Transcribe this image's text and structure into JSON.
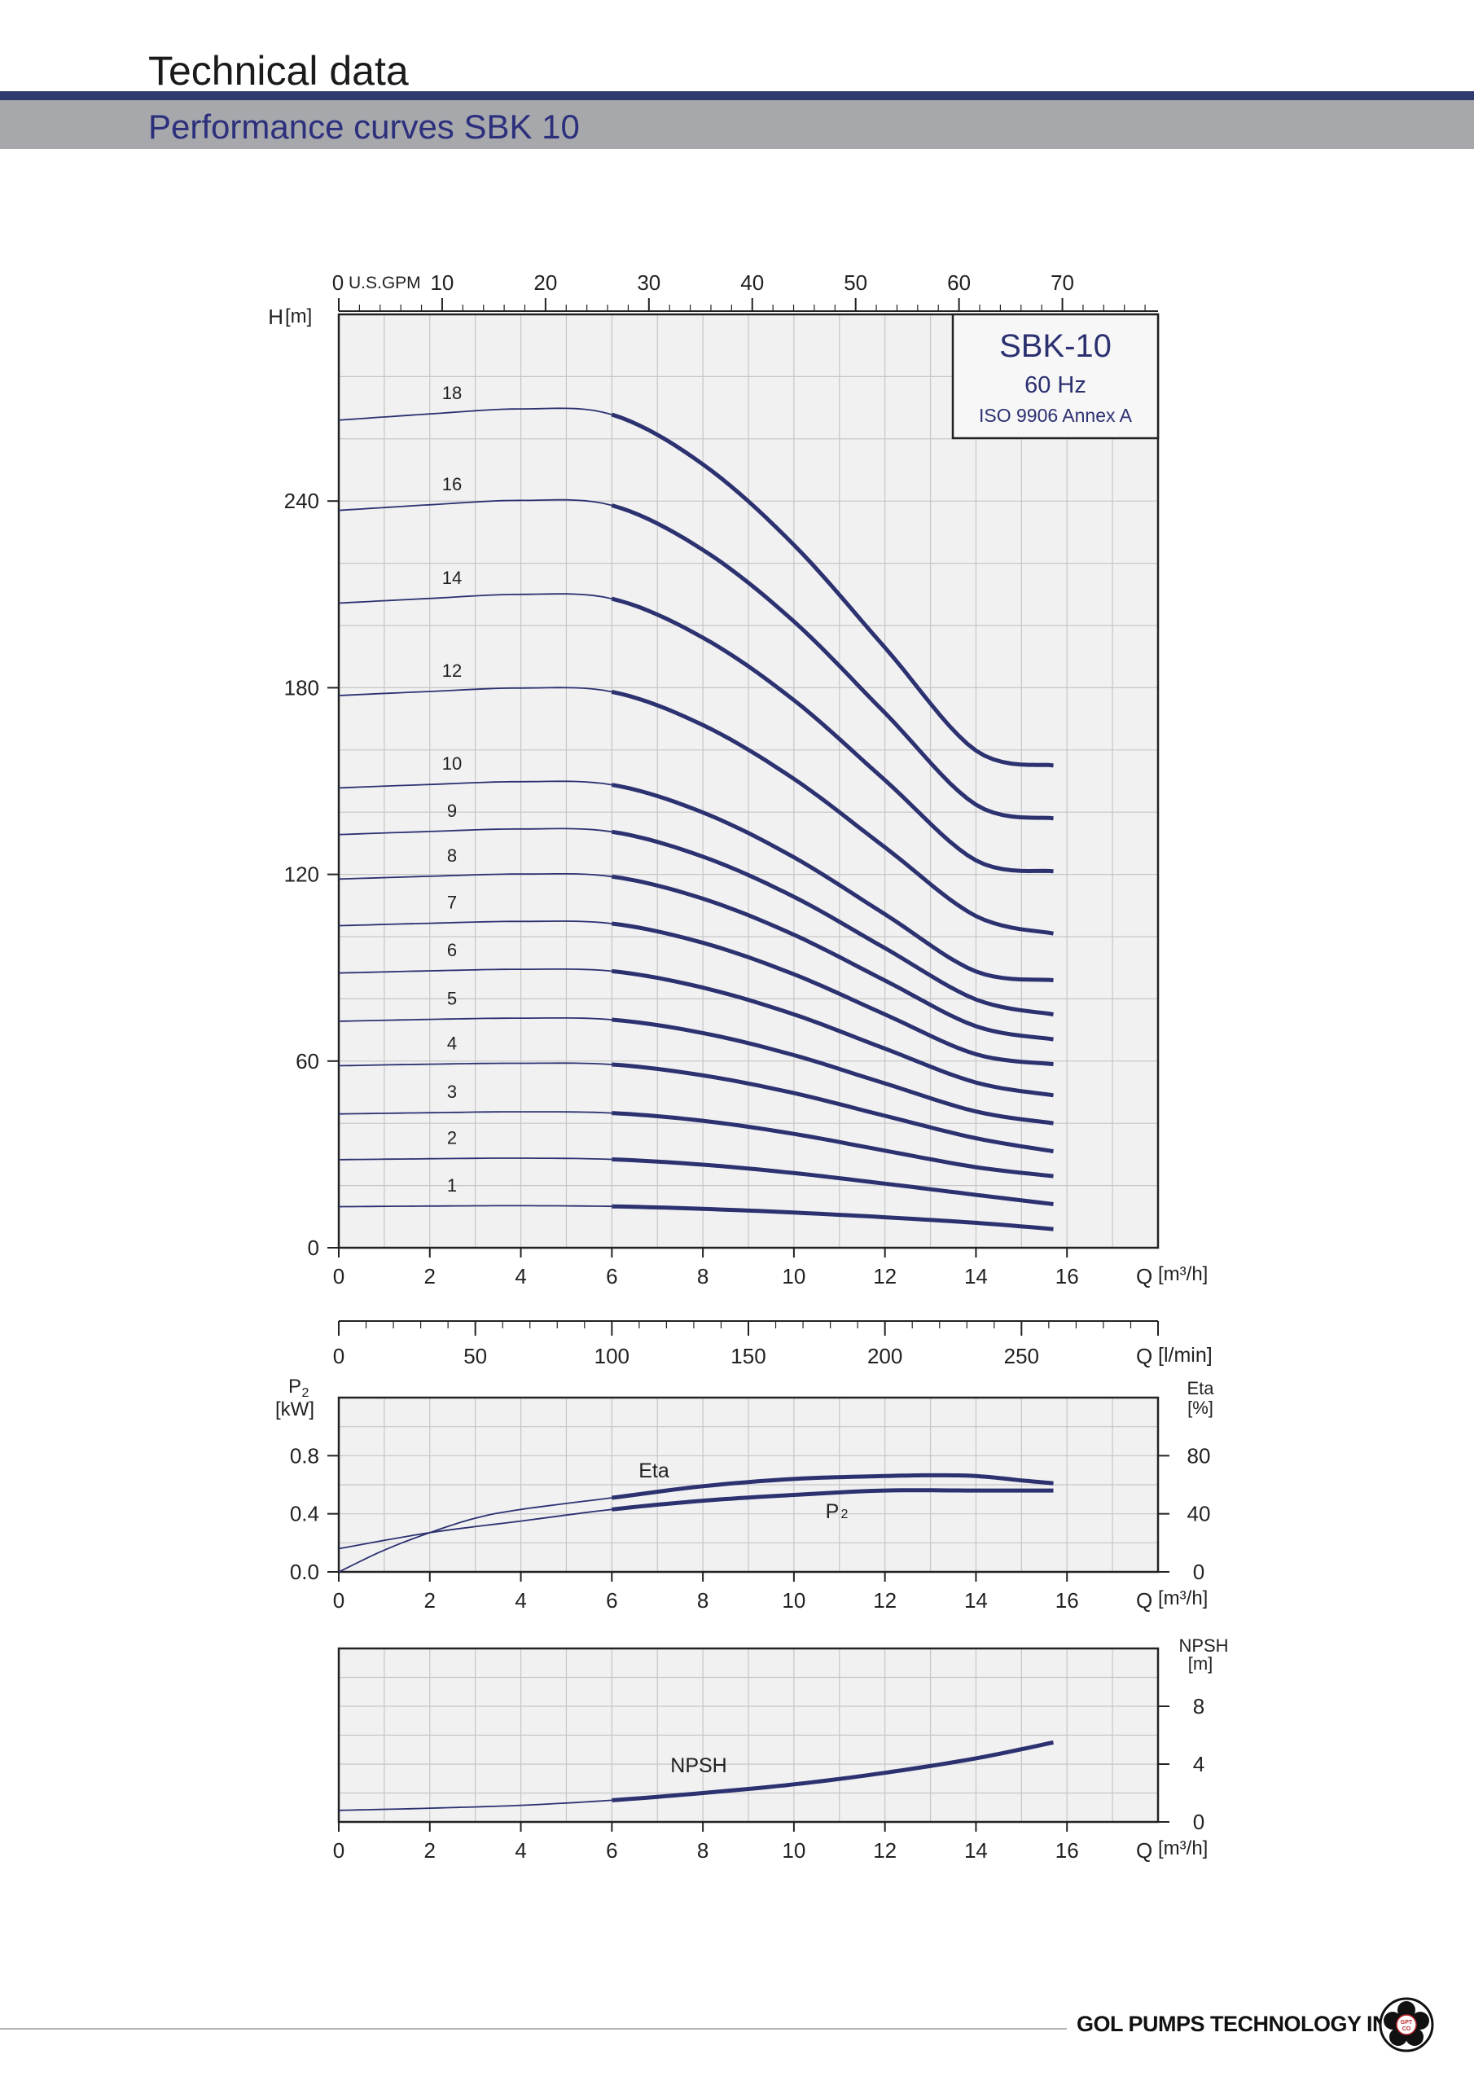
{
  "header": {
    "title": "Technical data",
    "subtitle": "Performance curves SBK 10"
  },
  "footer": {
    "company": "GOL PUMPS TECHNOLOGY INC",
    "logo_text": "GPT CO"
  },
  "colors": {
    "curve": "#2c3170",
    "grid": "#c6c6c6",
    "plot_bg": "#f1f1f2",
    "axis": "#222222",
    "band": "#a6a8ac",
    "rule": "#2f3a6e"
  },
  "chart_data": [
    {
      "type": "line",
      "title": "SBK-10",
      "legend": {
        "model": "SBK-10",
        "frequency": "60 Hz",
        "standard": "ISO 9906 Annex A",
        "placement": "top-right"
      },
      "xlabel": "Q[m³/h]",
      "ylabel": "H[m]",
      "xlim": [
        0,
        18
      ],
      "ylim": [
        0,
        300
      ],
      "x_ticks": [
        "0",
        "2",
        "4",
        "6",
        "8",
        "10",
        "12",
        "14",
        "16"
      ],
      "y_ticks": [
        "0",
        "60",
        "120",
        "180",
        "240"
      ],
      "secondary_x_axis": {
        "label": "U.S.GPM",
        "ticks": [
          "0",
          "10",
          "20",
          "30",
          "40",
          "50",
          "60",
          "70"
        ]
      },
      "grid": true,
      "operating_range": [
        6,
        15.7
      ],
      "series": [
        {
          "name": "1",
          "x": [
            0,
            2,
            4,
            6,
            8,
            10,
            12,
            14,
            15.7
          ],
          "y": [
            13.2,
            13.4,
            13.5,
            13.3,
            12.5,
            11.3,
            9.8,
            8.0,
            6.0
          ]
        },
        {
          "name": "2",
          "x": [
            0,
            2,
            4,
            6,
            8,
            10,
            12,
            14,
            15.7
          ],
          "y": [
            28.3,
            28.6,
            28.8,
            28.4,
            26.7,
            24.0,
            20.6,
            17.0,
            14.0
          ]
        },
        {
          "name": "3",
          "x": [
            0,
            2,
            4,
            6,
            8,
            10,
            12,
            14,
            15.7
          ],
          "y": [
            43.0,
            43.4,
            43.7,
            43.3,
            40.8,
            36.6,
            31.2,
            25.9,
            23.0
          ]
        },
        {
          "name": "4",
          "x": [
            0,
            2,
            4,
            6,
            8,
            10,
            12,
            14,
            15.7
          ],
          "y": [
            58.5,
            59.0,
            59.3,
            58.9,
            55.4,
            49.7,
            42.4,
            35.2,
            31.0
          ]
        },
        {
          "name": "5",
          "x": [
            0,
            2,
            4,
            6,
            8,
            10,
            12,
            14,
            15.7
          ],
          "y": [
            72.8,
            73.4,
            73.8,
            73.3,
            69.0,
            61.9,
            52.8,
            43.8,
            40.0
          ]
        },
        {
          "name": "6",
          "x": [
            0,
            2,
            4,
            6,
            8,
            10,
            12,
            14,
            15.7
          ],
          "y": [
            88.3,
            89.0,
            89.5,
            88.9,
            83.6,
            75.0,
            64.0,
            53.1,
            49.0
          ]
        },
        {
          "name": "7",
          "x": [
            0,
            2,
            4,
            6,
            8,
            10,
            12,
            14,
            15.7
          ],
          "y": [
            103.5,
            104.3,
            104.9,
            104.2,
            98.0,
            87.9,
            75.0,
            62.2,
            59.0
          ]
        },
        {
          "name": "8",
          "x": [
            0,
            2,
            4,
            6,
            8,
            10,
            12,
            14,
            15.7
          ],
          "y": [
            118.5,
            119.4,
            120.1,
            119.3,
            112.2,
            100.6,
            85.9,
            71.2,
            67.0
          ]
        },
        {
          "name": "9",
          "x": [
            0,
            2,
            4,
            6,
            8,
            10,
            12,
            14,
            15.7
          ],
          "y": [
            132.8,
            133.8,
            134.6,
            133.7,
            125.7,
            112.8,
            96.3,
            79.8,
            75.0
          ]
        },
        {
          "name": "10",
          "x": [
            0,
            2,
            4,
            6,
            8,
            10,
            12,
            14,
            15.7
          ],
          "y": [
            147.8,
            148.9,
            149.8,
            148.8,
            139.9,
            125.5,
            107.2,
            88.8,
            86.0
          ]
        },
        {
          "name": "12",
          "x": [
            0,
            2,
            4,
            6,
            8,
            10,
            12,
            14,
            15.7
          ],
          "y": [
            177.5,
            178.8,
            179.9,
            178.7,
            168.0,
            150.7,
            128.7,
            106.6,
            101.0
          ]
        },
        {
          "name": "14",
          "x": [
            0,
            2,
            4,
            6,
            8,
            10,
            12,
            14,
            15.7
          ],
          "y": [
            207.2,
            208.7,
            210.0,
            208.6,
            196.1,
            176.0,
            150.3,
            124.5,
            121.0
          ]
        },
        {
          "name": "16",
          "x": [
            0,
            2,
            4,
            6,
            8,
            10,
            12,
            14,
            15.7
          ],
          "y": [
            237.0,
            238.8,
            240.2,
            238.6,
            224.3,
            201.3,
            171.9,
            142.4,
            138.0
          ]
        },
        {
          "name": "18",
          "x": [
            0,
            2,
            4,
            6,
            8,
            10,
            12,
            14,
            15.7
          ],
          "y": [
            266.0,
            268.0,
            269.6,
            267.8,
            251.8,
            225.9,
            192.9,
            159.8,
            155.0
          ]
        }
      ]
    },
    {
      "type": "line",
      "xlabel": "Q[l/min]",
      "xlim": [
        0,
        300
      ],
      "x_ticks": [
        "0",
        "50",
        "100",
        "150",
        "200",
        "250"
      ],
      "note": "secondary flow scale"
    },
    {
      "type": "line",
      "xlabel": "Q[m³/h]",
      "ylabel": "P2 [kW]",
      "ylabel_right": "Eta [%]",
      "xlim": [
        0,
        18
      ],
      "ylim": [
        0,
        1.2
      ],
      "ylim_right": [
        0,
        120
      ],
      "x_ticks": [
        "0",
        "2",
        "4",
        "6",
        "8",
        "10",
        "12",
        "14",
        "16"
      ],
      "y_ticks": [
        "0.0",
        "0.4",
        "0.8"
      ],
      "y_ticks_right": [
        "0",
        "40",
        "80"
      ],
      "grid": true,
      "series": [
        {
          "name": "Eta",
          "axis": "right",
          "x": [
            0,
            1,
            2,
            3,
            4,
            6,
            8,
            10,
            12,
            13,
            14,
            15,
            15.7
          ],
          "y": [
            0,
            15,
            27,
            37,
            43,
            51,
            59,
            64,
            66,
            66.5,
            66,
            63,
            61
          ]
        },
        {
          "name": "P2",
          "axis": "left",
          "x": [
            0,
            2,
            4,
            6,
            8,
            10,
            12,
            14,
            15.7
          ],
          "y": [
            0.16,
            0.27,
            0.35,
            0.43,
            0.49,
            0.53,
            0.56,
            0.56,
            0.56
          ]
        }
      ]
    },
    {
      "type": "line",
      "xlabel": "Q[m³/h]",
      "ylabel_right": "NPSH [m]",
      "xlim": [
        0,
        18
      ],
      "ylim": [
        0,
        12
      ],
      "x_ticks": [
        "0",
        "2",
        "4",
        "6",
        "8",
        "10",
        "12",
        "14",
        "16"
      ],
      "y_ticks_right": [
        "0",
        "4",
        "8"
      ],
      "grid": true,
      "series": [
        {
          "name": "NPSH",
          "x": [
            0,
            2,
            4,
            6,
            8,
            10,
            12,
            14,
            15.7
          ],
          "y": [
            0.8,
            0.95,
            1.15,
            1.5,
            2.0,
            2.6,
            3.4,
            4.4,
            5.5
          ]
        }
      ]
    }
  ]
}
